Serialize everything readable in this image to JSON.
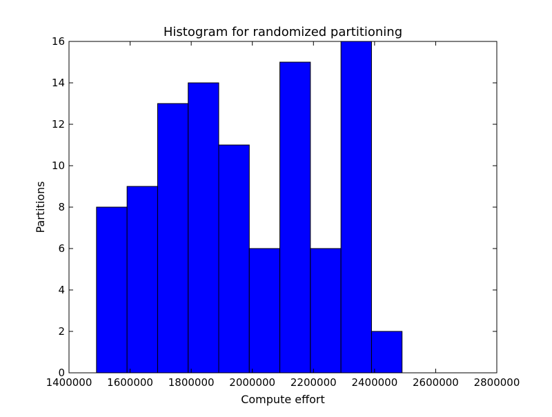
{
  "chart_data": {
    "type": "bar",
    "title": "Histogram for randomized partitioning",
    "xlabel": "Compute effort",
    "ylabel": "Partitions",
    "xlim": [
      1400000,
      2800000
    ],
    "ylim": [
      0,
      16
    ],
    "x_ticks": [
      1400000,
      1600000,
      1800000,
      2000000,
      2200000,
      2400000,
      2600000,
      2800000
    ],
    "x_tick_labels": [
      "1400000",
      "1600000",
      "1800000",
      "2000000",
      "2200000",
      "2400000",
      "2600000",
      "2800000"
    ],
    "y_ticks": [
      0,
      2,
      4,
      6,
      8,
      10,
      12,
      14,
      16
    ],
    "y_tick_labels": [
      "0",
      "2",
      "4",
      "6",
      "8",
      "10",
      "12",
      "14",
      "16"
    ],
    "bin_edges": [
      1490000,
      1590000,
      1690000,
      1790000,
      1890000,
      1990000,
      2090000,
      2190000,
      2290000,
      2390000,
      2490000
    ],
    "values": [
      8,
      9,
      13,
      14,
      11,
      6,
      15,
      6,
      16,
      2
    ],
    "bar_color": "#0000ff",
    "edge_color": "#000000",
    "grid": false,
    "legend": "none"
  }
}
